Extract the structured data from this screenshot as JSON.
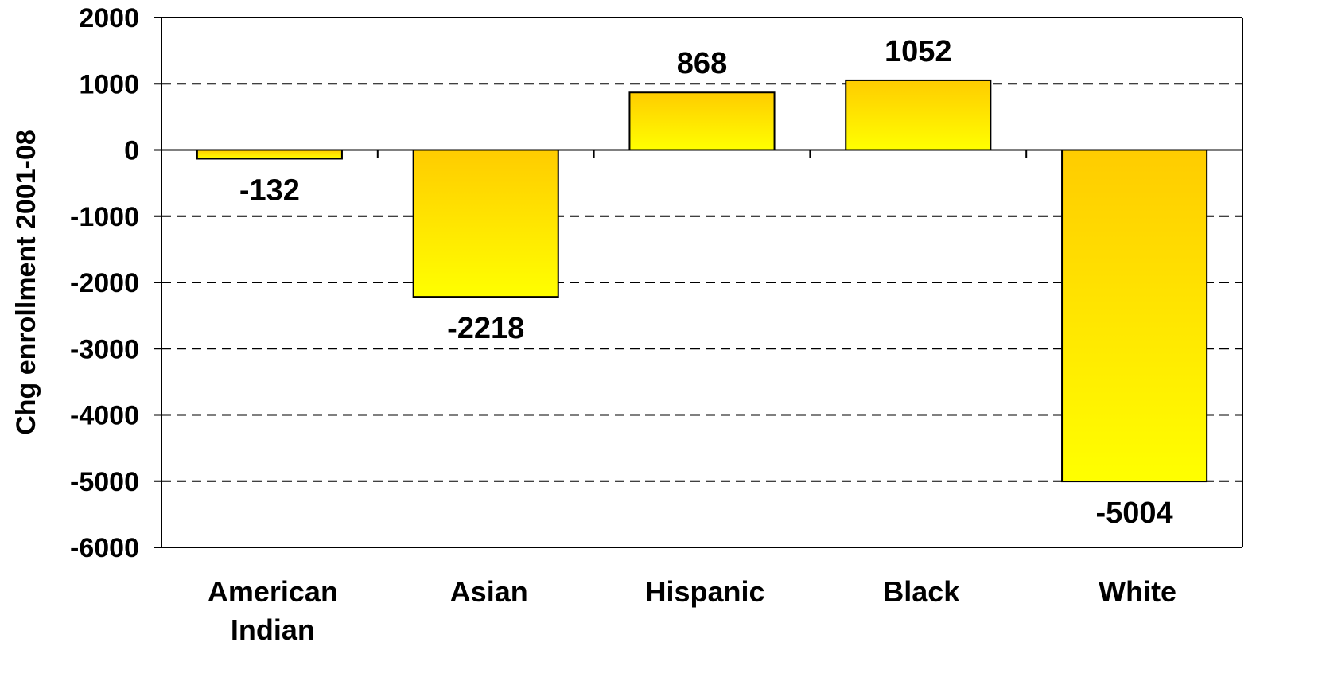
{
  "chart_data": {
    "type": "bar",
    "title": "",
    "xlabel": "",
    "ylabel": "Chg enrollment 2001-08",
    "categories": [
      [
        "American",
        "Indian"
      ],
      [
        "Asian"
      ],
      [
        "Hispanic"
      ],
      [
        "Black"
      ],
      [
        "White"
      ]
    ],
    "values": [
      -132,
      -2218,
      868,
      1052,
      -5004
    ],
    "data_labels": [
      "-132",
      "-2218",
      "868",
      "1052",
      "-5004"
    ],
    "ylim": [
      -6000,
      2000
    ],
    "yticks": [
      2000,
      1000,
      0,
      -1000,
      -2000,
      -3000,
      -4000,
      -5000,
      -6000
    ],
    "ytick_labels": [
      "2000",
      "1000",
      "0",
      "-1000",
      "-2000",
      "-3000",
      "-4000",
      "-5000",
      "-6000"
    ],
    "grid": "horizontal dashed",
    "bar_gradient": {
      "top": "#FFCC00",
      "bottom": "#FFFF00"
    },
    "bar_outline": "#000000"
  }
}
